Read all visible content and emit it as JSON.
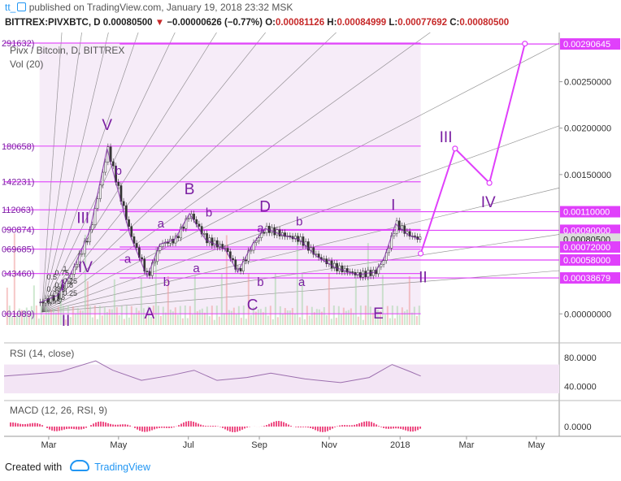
{
  "header": {
    "author": "tt_",
    "published_text": "published on TradingView.com, January 19, 2018 23:32 MSK",
    "symbol": "BITTREX:PIVXBTC, D",
    "last": "0.00080500",
    "change": "−0.00000626 (−0.77%)",
    "o_label": "O:",
    "o": "0.00081126",
    "h_label": "H:",
    "h": "0.00084999",
    "l_label": "L:",
    "l": "0.00077692",
    "c_label": "C:",
    "c": "0.00080500"
  },
  "footer": {
    "created_with": "Created with",
    "brand": "TradingView"
  },
  "colors": {
    "accent": "#e040fb",
    "wave": "#7b1fa2",
    "fan": "#555555",
    "band": "#f3e5f5",
    "rsi": "#9c6fae",
    "candle_up": "#26a69a",
    "candle_down": "#ef5350",
    "price_tag": "#dcdcdc"
  },
  "chart_data": {
    "type": "candlestick",
    "title": "Pivx / Bitcoin, D, BITTREX",
    "volume_label": "Vol (20)",
    "x_ticks": [
      "Mar",
      "May",
      "Jul",
      "Sep",
      "Nov",
      "2018",
      "Mar",
      "May"
    ],
    "y_ticks": [
      "0.00250000",
      "0.00200000",
      "0.00150000",
      "0.00000000"
    ],
    "ylim": [
      -0.00012,
      0.00303
    ],
    "price_tags": [
      {
        "value": 0.00290645,
        "label": "0.00290645",
        "style": "accent"
      },
      {
        "value": 0.0011,
        "label": "0.00110000",
        "style": "accent"
      },
      {
        "value": 0.0009,
        "label": "0.00090000",
        "style": "accent"
      },
      {
        "value": 0.000805,
        "label": "0.00080500",
        "style": "last"
      },
      {
        "value": 0.00072,
        "label": "0.00072000",
        "style": "accent"
      },
      {
        "value": 0.00058,
        "label": "0.00058000",
        "style": "accent"
      },
      {
        "value": 0.00038679,
        "label": "0.00038679",
        "style": "accent"
      }
    ],
    "fib_levels": [
      {
        "value": 0.0029163,
        "label": "291632)"
      },
      {
        "value": 0.0018066,
        "label": "180658)"
      },
      {
        "value": 0.0014223,
        "label": "142231)"
      },
      {
        "value": 0.0011206,
        "label": "112063)"
      },
      {
        "value": 0.0009087,
        "label": "090874)"
      },
      {
        "value": 0.0006969,
        "label": "069685)"
      },
      {
        "value": 0.0004346,
        "label": "043460)"
      },
      {
        "value": 9e-07,
        "label": "001089)"
      }
    ],
    "fan_scale_labels": [
      "0.75",
      "0.5",
      "0.25",
      "0.382",
      "0.618",
      "0.25",
      "0.5",
      "0.75",
      "1"
    ],
    "close_points": [
      [
        "2017-02-20",
        0.00012
      ],
      [
        "2017-03-08",
        0.0002
      ],
      [
        "2017-03-20",
        0.00045
      ],
      [
        "2017-03-29",
        0.0007
      ],
      [
        "2017-04-05",
        0.0009
      ],
      [
        "2017-04-20",
        0.00178
      ],
      [
        "2017-04-28",
        0.0014
      ],
      [
        "2017-05-10",
        0.00085
      ],
      [
        "2017-05-25",
        0.0004
      ],
      [
        "2017-06-05",
        0.00075
      ],
      [
        "2017-06-18",
        0.0008
      ],
      [
        "2017-07-01",
        0.00108
      ],
      [
        "2017-07-15",
        0.0008
      ],
      [
        "2017-08-01",
        0.0007
      ],
      [
        "2017-08-12",
        0.00045
      ],
      [
        "2017-08-25",
        0.00075
      ],
      [
        "2017-09-05",
        0.00092
      ],
      [
        "2017-09-20",
        0.00085
      ],
      [
        "2017-10-05",
        0.0008
      ],
      [
        "2017-10-20",
        0.00062
      ],
      [
        "2017-11-05",
        0.0005
      ],
      [
        "2017-11-25",
        0.00042
      ],
      [
        "2017-12-10",
        0.00045
      ],
      [
        "2017-12-18",
        0.0006
      ],
      [
        "2017-12-28",
        0.00097
      ],
      [
        "2018-01-08",
        0.00085
      ],
      [
        "2018-01-19",
        0.0008
      ]
    ],
    "wave_labels": [
      {
        "text": "V",
        "date": "2017-04-20",
        "value": 0.00198
      },
      {
        "text": "b",
        "date": "2017-04-30",
        "value": 0.0015
      },
      {
        "text": "III",
        "date": "2017-03-30",
        "value": 0.00098
      },
      {
        "text": "a",
        "date": "2017-05-08",
        "value": 0.00055
      },
      {
        "text": "IV",
        "date": "2017-04-01",
        "value": 0.00045
      },
      {
        "text": "I",
        "date": "2017-03-12",
        "value": 0.00025
      },
      {
        "text": "II",
        "date": "2017-03-15",
        "value": -0.00013
      },
      {
        "text": "a",
        "date": "2017-06-06",
        "value": 0.00093
      },
      {
        "text": "b",
        "date": "2017-06-11",
        "value": 0.0003
      },
      {
        "text": "A",
        "date": "2017-05-27",
        "value": -5e-05
      },
      {
        "text": "B",
        "date": "2017-07-01",
        "value": 0.00129
      },
      {
        "text": "b",
        "date": "2017-07-18",
        "value": 0.00105
      },
      {
        "text": "a",
        "date": "2017-07-07",
        "value": 0.00045
      },
      {
        "text": "C",
        "date": "2017-08-25",
        "value": 4e-05
      },
      {
        "text": "b",
        "date": "2017-09-01",
        "value": 0.0003
      },
      {
        "text": "D",
        "date": "2017-09-05",
        "value": 0.0011
      },
      {
        "text": "a",
        "date": "2017-09-01",
        "value": 0.00088
      },
      {
        "text": "b",
        "date": "2017-10-05",
        "value": 0.00095
      },
      {
        "text": "a",
        "date": "2017-10-07",
        "value": 0.0003
      },
      {
        "text": "E",
        "date": "2017-12-13",
        "value": -5e-05
      },
      {
        "text": "I",
        "date": "2017-12-26",
        "value": 0.00112
      },
      {
        "text": "II",
        "date": "2018-01-21",
        "value": 0.00034
      },
      {
        "text": "III",
        "date": "2018-02-10",
        "value": 0.00185
      },
      {
        "text": "IV",
        "date": "2018-03-19",
        "value": 0.00115
      }
    ],
    "projection_points": [
      [
        "2018-01-19",
        0.00065
      ],
      [
        "2018-02-18",
        0.00178
      ],
      [
        "2018-03-20",
        0.00141
      ],
      [
        "2018-04-20",
        0.00291
      ]
    ],
    "rsi": {
      "label": "RSI (14, close)",
      "ticks": [
        "80.0000",
        "40.0000"
      ],
      "ylim": [
        20,
        100
      ],
      "band": [
        30,
        70
      ],
      "points": [
        [
          "2017-01-20",
          54
        ],
        [
          "2017-02-15",
          57
        ],
        [
          "2017-03-10",
          60
        ],
        [
          "2017-04-10",
          75
        ],
        [
          "2017-04-25",
          62
        ],
        [
          "2017-05-20",
          48
        ],
        [
          "2017-06-15",
          55
        ],
        [
          "2017-07-05",
          62
        ],
        [
          "2017-07-25",
          48
        ],
        [
          "2017-08-20",
          52
        ],
        [
          "2017-09-10",
          58
        ],
        [
          "2017-10-10",
          50
        ],
        [
          "2017-11-10",
          45
        ],
        [
          "2017-12-05",
          52
        ],
        [
          "2017-12-25",
          70
        ],
        [
          "2018-01-10",
          60
        ],
        [
          "2018-01-19",
          54
        ]
      ]
    },
    "macd": {
      "label": "MACD (12, 26, RSI, 9)",
      "ticks": [
        "0.0000"
      ]
    }
  }
}
